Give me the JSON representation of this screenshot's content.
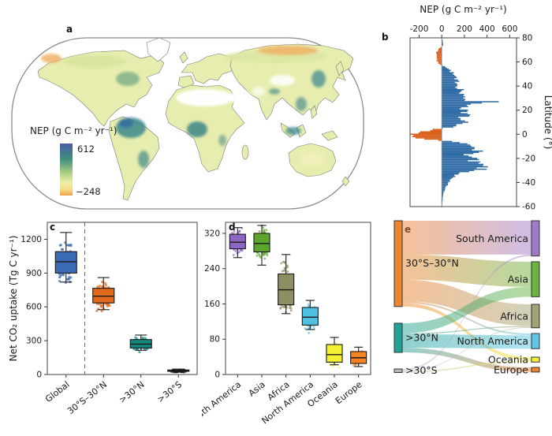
{
  "panels": {
    "a": {
      "label": "a"
    },
    "b": {
      "label": "b"
    },
    "c": {
      "label": "c"
    },
    "d": {
      "label": "d"
    },
    "e": {
      "label": "e"
    }
  },
  "panel_a": {
    "colorbar": {
      "title": "NEP (g C m⁻² yr⁻¹)",
      "max": "612",
      "min": "−248",
      "gradient_top_to_bottom": [
        "#4d5ea6",
        "#3f8f7c",
        "#a6cc80",
        "#edf0a9",
        "#f6dd85",
        "#f0a04c"
      ]
    }
  },
  "chart_data": [
    {
      "panel": "b",
      "type": "bar",
      "orientation": "horizontal",
      "title": "NEP (g C m⁻² yr⁻¹)",
      "ylabel": "Latitude (°)",
      "xlim": [
        -280,
        660
      ],
      "xticks": [
        -200,
        0,
        200,
        400,
        600
      ],
      "ylim": [
        -60,
        80
      ],
      "yticks": [
        80,
        60,
        40,
        20,
        0,
        -20,
        -40,
        -60
      ],
      "pos_color": "#2f6ca6",
      "neg_color": "#d9611b",
      "profile_lat": [
        80,
        78,
        76,
        74,
        72,
        70,
        68,
        66,
        64,
        62,
        60,
        58,
        56,
        54,
        52,
        50,
        48,
        46,
        44,
        42,
        40,
        38,
        36,
        34,
        32,
        30,
        28,
        27,
        26,
        24,
        22,
        20,
        18,
        16,
        14,
        12,
        10,
        8,
        6,
        4,
        2,
        0,
        -2,
        -4,
        -6,
        -8,
        -10,
        -12,
        -14,
        -16,
        -18,
        -20,
        -22,
        -24,
        -26,
        -28,
        -30,
        -32,
        -34,
        -36,
        -38,
        -40,
        -42,
        -44,
        -46,
        -48,
        -50,
        -52,
        -54,
        -56,
        -58,
        -60
      ],
      "profile_nep": [
        3,
        6,
        10,
        12,
        -12,
        -35,
        -45,
        -50,
        -48,
        -42,
        -35,
        -20,
        35,
        60,
        85,
        95,
        115,
        105,
        135,
        155,
        140,
        165,
        185,
        155,
        175,
        205,
        240,
        600,
        300,
        255,
        185,
        215,
        165,
        235,
        175,
        155,
        195,
        125,
        85,
        -70,
        -190,
        -255,
        -235,
        -150,
        95,
        205,
        285,
        370,
        305,
        265,
        225,
        285,
        255,
        305,
        345,
        365,
        285,
        185,
        125,
        85,
        65,
        55,
        45,
        35,
        25,
        18,
        12,
        10,
        8,
        6,
        5,
        4
      ]
    },
    {
      "panel": "c",
      "type": "box",
      "ylabel": "Net CO₂ uptake (Tg C yr⁻¹)",
      "ylim": [
        0,
        1350
      ],
      "yticks": [
        0,
        300,
        600,
        900,
        1200
      ],
      "categories": [
        "Global",
        "30°S–30°N",
        ">30°N",
        ">30°S"
      ],
      "colors": [
        "#3a6ab1",
        "#e2691c",
        "#12897e",
        "#101010"
      ],
      "boxes": [
        {
          "whislo": 820,
          "q1": 900,
          "med": 1000,
          "q3": 1090,
          "whishi": 1260
        },
        {
          "whislo": 575,
          "q1": 635,
          "med": 695,
          "q3": 765,
          "whishi": 860
        },
        {
          "whislo": 215,
          "q1": 235,
          "med": 270,
          "q3": 310,
          "whishi": 350
        },
        {
          "whislo": 22,
          "q1": 28,
          "med": 33,
          "q3": 40,
          "whishi": 48
        }
      ],
      "points_per_box": [
        75,
        75,
        60,
        40
      ],
      "dashed_after_index": 0
    },
    {
      "panel": "d",
      "type": "box",
      "ylabel": "",
      "ylim": [
        0,
        345
      ],
      "yticks": [
        0,
        80,
        160,
        240,
        320
      ],
      "categories": [
        "South America",
        "Asia",
        "Africa",
        "North America",
        "Oceania",
        "Europe"
      ],
      "colors": [
        "#8f65c4",
        "#5ca62b",
        "#8e8e60",
        "#4fc0e1",
        "#f4f032",
        "#f58220"
      ],
      "boxes": [
        {
          "whislo": 265,
          "q1": 285,
          "med": 300,
          "q3": 318,
          "whishi": 333
        },
        {
          "whislo": 248,
          "q1": 278,
          "med": 297,
          "q3": 320,
          "whishi": 338
        },
        {
          "whislo": 138,
          "q1": 158,
          "med": 192,
          "q3": 228,
          "whishi": 272
        },
        {
          "whislo": 102,
          "q1": 112,
          "med": 130,
          "q3": 152,
          "whishi": 168
        },
        {
          "whislo": 22,
          "q1": 28,
          "med": 45,
          "q3": 68,
          "whishi": 84
        },
        {
          "whislo": 18,
          "q1": 25,
          "med": 38,
          "q3": 52,
          "whishi": 62
        }
      ],
      "points_per_box": [
        90,
        95,
        140,
        110,
        60,
        60
      ],
      "dashed_after_index": -1
    },
    {
      "panel": "e",
      "type": "sankey",
      "sources": [
        {
          "label": "30°S–30°N",
          "color": "#ec8532",
          "value": 735
        },
        {
          "label": ">30°N",
          "color": "#23a199",
          "value": 250
        },
        {
          "label": ">30°S",
          "color": "#b9b9b9",
          "value": 30
        }
      ],
      "targets": [
        {
          "label": "South America",
          "color": "#a07cc8",
          "value": 302
        },
        {
          "label": "Asia",
          "color": "#6cb33f",
          "value": 300
        },
        {
          "label": "Africa",
          "color": "#a3a274",
          "value": 201
        },
        {
          "label": "North America",
          "color": "#5ec8e5",
          "value": 130
        },
        {
          "label": "Oceania",
          "color": "#f2ee3a",
          "value": 42
        },
        {
          "label": "Europe",
          "color": "#ef8432",
          "value": 40
        }
      ],
      "links": [
        {
          "source": 0,
          "target": 0,
          "value": 290
        },
        {
          "source": 0,
          "target": 1,
          "value": 215
        },
        {
          "source": 0,
          "target": 2,
          "value": 185
        },
        {
          "source": 0,
          "target": 3,
          "value": 15
        },
        {
          "source": 0,
          "target": 4,
          "value": 30
        },
        {
          "source": 1,
          "target": 1,
          "value": 85
        },
        {
          "source": 1,
          "target": 2,
          "value": 10
        },
        {
          "source": 1,
          "target": 3,
          "value": 115
        },
        {
          "source": 1,
          "target": 5,
          "value": 40
        },
        {
          "source": 2,
          "target": 0,
          "value": 12
        },
        {
          "source": 2,
          "target": 2,
          "value": 6
        },
        {
          "source": 2,
          "target": 4,
          "value": 12
        }
      ]
    }
  ]
}
